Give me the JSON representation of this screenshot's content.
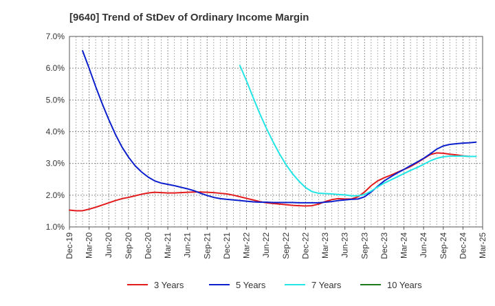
{
  "chart_data": {
    "type": "line",
    "title": "[9640]  Trend of StDev of Ordinary Income Margin",
    "xlabel": "",
    "ylabel": "",
    "ylim": [
      1.0,
      7.0
    ],
    "yticks": [
      1.0,
      2.0,
      3.0,
      4.0,
      5.0,
      6.0,
      7.0
    ],
    "ytick_labels": [
      "1.0%",
      "2.0%",
      "3.0%",
      "4.0%",
      "5.0%",
      "6.0%",
      "7.0%"
    ],
    "xlim": [
      "2019-12",
      "2025-03"
    ],
    "xtick_labels": [
      "Dec-19",
      "Mar-20",
      "Jun-20",
      "Sep-20",
      "Dec-20",
      "Mar-21",
      "Jun-21",
      "Sep-21",
      "Dec-21",
      "Mar-22",
      "Jun-22",
      "Sep-22",
      "Dec-22",
      "Mar-23",
      "Jun-23",
      "Sep-23",
      "Dec-23",
      "Mar-24",
      "Jun-24",
      "Sep-24",
      "Dec-24",
      "Mar-25"
    ],
    "grid": true,
    "legend_position": "bottom",
    "series": [
      {
        "name": "3 Years",
        "color": "#e31a1c",
        "start": "2019-12",
        "values": [
          1.53,
          1.51,
          1.51,
          1.56,
          1.62,
          1.69,
          1.76,
          1.83,
          1.89,
          1.93,
          1.98,
          2.03,
          2.07,
          2.09,
          2.08,
          2.07,
          2.07,
          2.08,
          2.09,
          2.1,
          2.1,
          2.09,
          2.08,
          2.06,
          2.04,
          2.0,
          1.95,
          1.9,
          1.85,
          1.8,
          1.76,
          1.74,
          1.72,
          1.7,
          1.68,
          1.67,
          1.66,
          1.67,
          1.72,
          1.8,
          1.86,
          1.89,
          1.88,
          1.88,
          1.95,
          2.1,
          2.3,
          2.45,
          2.55,
          2.63,
          2.72,
          2.81,
          2.9,
          3.02,
          3.15,
          3.28,
          3.33,
          3.32,
          3.29,
          3.27,
          3.24,
          3.22
        ]
      },
      {
        "name": "5 Years",
        "color": "#0a1ecc",
        "start": "2020-02",
        "values": [
          6.55,
          6.0,
          5.42,
          4.88,
          4.38,
          3.92,
          3.52,
          3.2,
          2.93,
          2.73,
          2.57,
          2.45,
          2.38,
          2.34,
          2.3,
          2.25,
          2.2,
          2.14,
          2.06,
          1.99,
          1.93,
          1.89,
          1.87,
          1.85,
          1.83,
          1.81,
          1.79,
          1.78,
          1.78,
          1.77,
          1.77,
          1.77,
          1.77,
          1.76,
          1.76,
          1.76,
          1.76,
          1.78,
          1.8,
          1.83,
          1.85,
          1.87,
          1.88,
          1.95,
          2.1,
          2.28,
          2.45,
          2.58,
          2.7,
          2.81,
          2.93,
          3.04,
          3.16,
          3.3,
          3.45,
          3.55,
          3.6,
          3.62,
          3.64,
          3.65,
          3.67
        ]
      },
      {
        "name": "7 Years",
        "color": "#22e5e5",
        "start": "2022-02",
        "values": [
          6.08,
          5.6,
          5.08,
          4.58,
          4.12,
          3.7,
          3.31,
          2.97,
          2.68,
          2.44,
          2.24,
          2.11,
          2.06,
          2.05,
          2.04,
          2.02,
          2.01,
          1.98,
          1.98,
          2.02,
          2.13,
          2.26,
          2.38,
          2.48,
          2.58,
          2.68,
          2.78,
          2.87,
          2.97,
          3.08,
          3.16,
          3.21,
          3.23,
          3.23,
          3.23,
          3.22,
          3.22
        ]
      },
      {
        "name": "10 Years",
        "color": "#1a7a1a",
        "start": "2019-12",
        "values": []
      }
    ]
  }
}
